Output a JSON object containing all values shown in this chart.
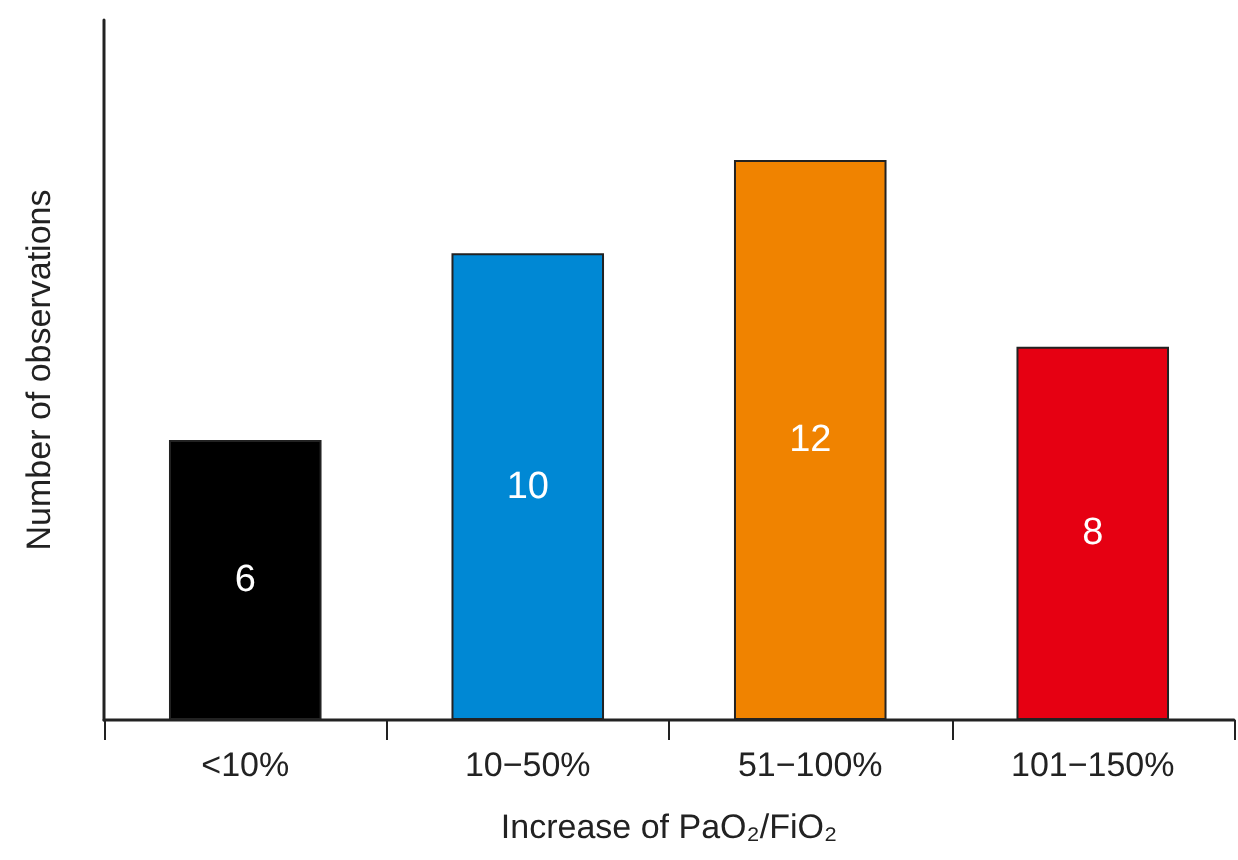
{
  "chart_data": {
    "type": "bar",
    "xlabel": "Increase of PaO₂/FiO₂",
    "ylabel": "Number of observations",
    "categories": [
      "<10%",
      "10−50%",
      "51−100%",
      "101−150%"
    ],
    "values": [
      6,
      10,
      12,
      8
    ],
    "colors": [
      "#000000",
      "#0088d4",
      "#f08300",
      "#e60012"
    ],
    "data_labels": true
  }
}
